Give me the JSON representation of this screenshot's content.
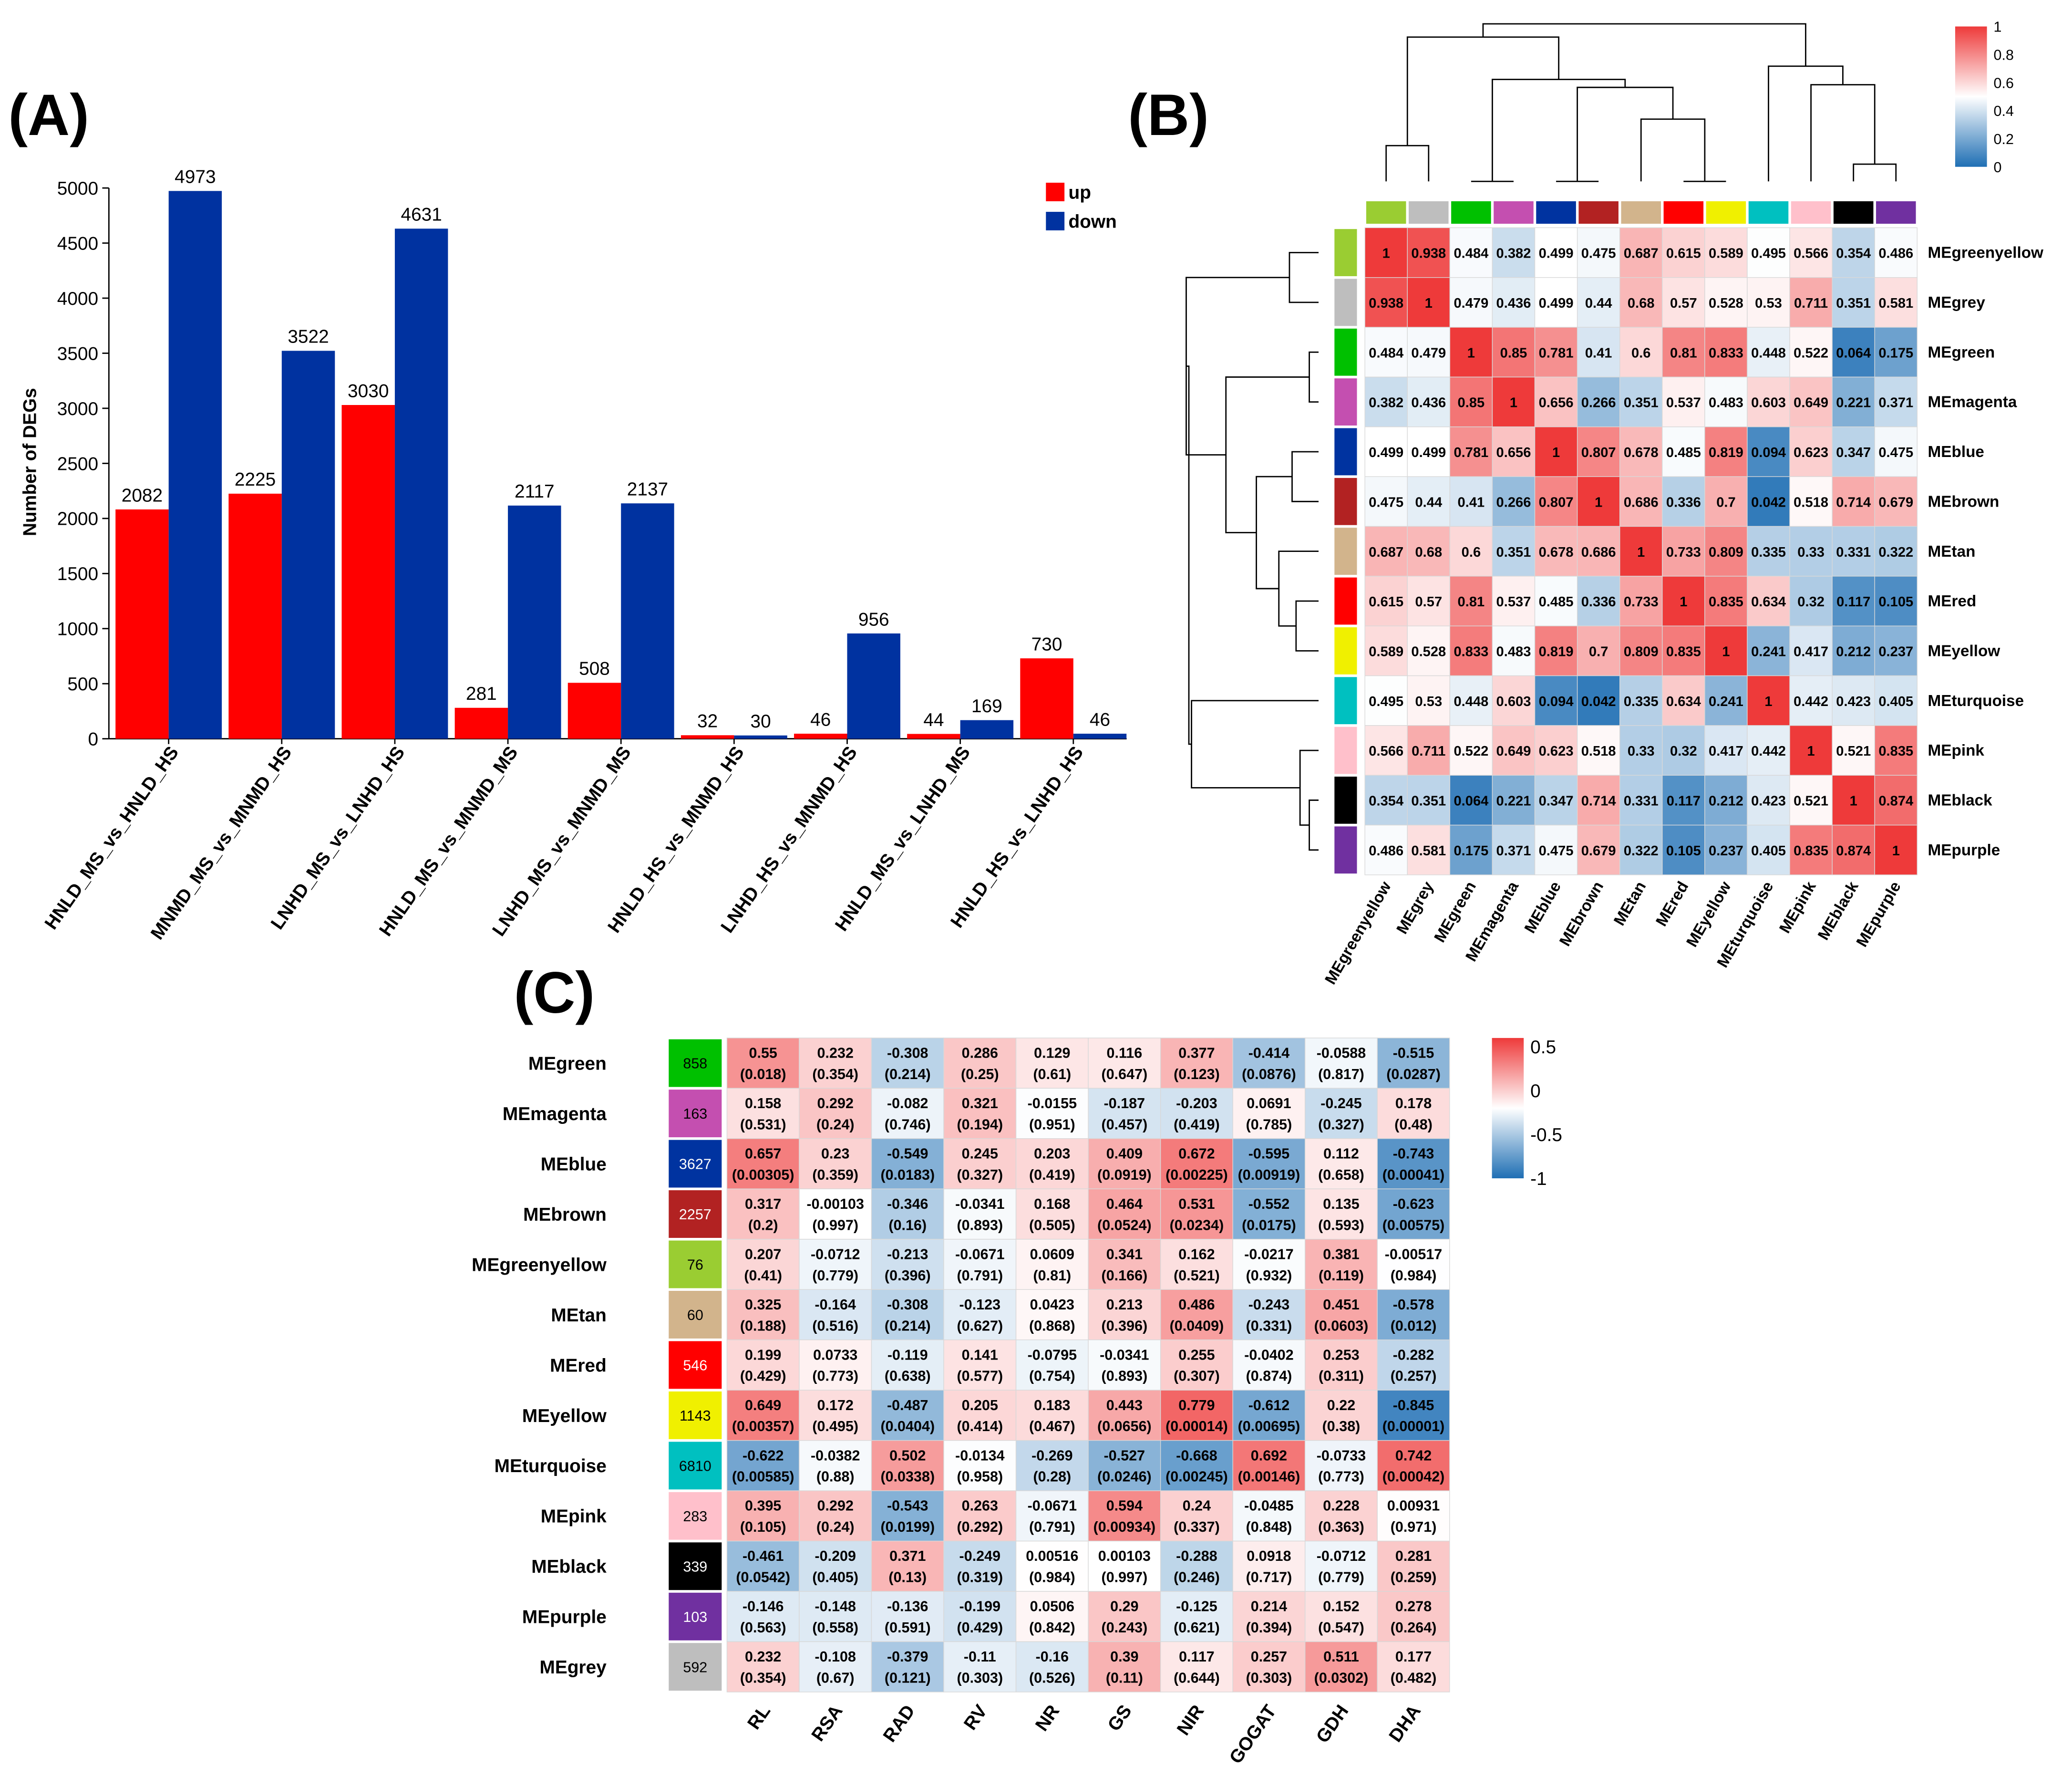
{
  "panels": {
    "a": "(A)",
    "b": "(B)",
    "c": "(C)"
  },
  "chart_data": [
    {
      "type": "bar",
      "panel": "(A)",
      "title": "",
      "xlabel": "",
      "ylabel": "Number of DEGs",
      "ylim": [
        0,
        5000
      ],
      "yticks": [
        "0",
        "500",
        "1000",
        "1500",
        "2000",
        "2500",
        "3000",
        "3500",
        "4000",
        "4500",
        "5000"
      ],
      "legend_position": "top-right",
      "categories": [
        "HNLD_MS_vs_HNLD_HS",
        "MNMD_MS_vs_MNMD_HS",
        "LNHD_MS_vs_LNHD_HS",
        "HNLD_MS_vs_MNMD_MS",
        "LNHD_MS_vs_MNMD_MS",
        "HNLD_HS_vs_MNMD_HS",
        "LNHD_HS_vs_MNMD_HS",
        "HNLD_MS_vs_LNHD_MS",
        "HNLD_HS_vs_LNHD_HS"
      ],
      "series": [
        {
          "name": "up",
          "color": "#ff0000",
          "values": [
            2082,
            2225,
            3030,
            281,
            508,
            32,
            46,
            44,
            730
          ]
        },
        {
          "name": "down",
          "color": "#0032a0",
          "values": [
            4973,
            3522,
            4631,
            2117,
            2137,
            30,
            956,
            169,
            46
          ]
        }
      ]
    },
    {
      "type": "heatmap",
      "panel": "(B)",
      "modules": [
        "MEgreenyellow",
        "MEgrey",
        "MEgreen",
        "MEmagenta",
        "MEblue",
        "MEbrown",
        "MEtan",
        "MEred",
        "MEyellow",
        "MEturquoise",
        "MEpink",
        "MEblack",
        "MEpurple"
      ],
      "module_colors": [
        "#9acd32",
        "#bebebe",
        "#00c000",
        "#c44fb0",
        "#0033a0",
        "#b22222",
        "#d2b48c",
        "#ff0000",
        "#f0f000",
        "#00c0c0",
        "#ffc0cb",
        "#000000",
        "#7030a0"
      ],
      "color_scale": {
        "min": 0,
        "max": 1,
        "low": "#1f6fb4",
        "mid": "#ffffff",
        "high": "#ee3a3a"
      },
      "colorbar_ticks": [
        "1",
        "0.8",
        "0.6",
        "0.4",
        "0.2",
        "0"
      ],
      "values": [
        [
          "1",
          "0.938",
          "0.484",
          "0.382",
          "0.499",
          "0.475",
          "0.687",
          "0.615",
          "0.589",
          "0.495",
          "0.566",
          "0.354",
          "0.486"
        ],
        [
          "0.938",
          "1",
          "0.479",
          "0.436",
          "0.499",
          "0.44",
          "0.68",
          "0.57",
          "0.528",
          "0.53",
          "0.711",
          "0.351",
          "0.581"
        ],
        [
          "0.484",
          "0.479",
          "1",
          "0.85",
          "0.781",
          "0.41",
          "0.6",
          "0.81",
          "0.833",
          "0.448",
          "0.522",
          "0.064",
          "0.175"
        ],
        [
          "0.382",
          "0.436",
          "0.85",
          "1",
          "0.656",
          "0.266",
          "0.351",
          "0.537",
          "0.483",
          "0.603",
          "0.649",
          "0.221",
          "0.371"
        ],
        [
          "0.499",
          "0.499",
          "0.781",
          "0.656",
          "1",
          "0.807",
          "0.678",
          "0.485",
          "0.819",
          "0.094",
          "0.623",
          "0.347",
          "0.475"
        ],
        [
          "0.475",
          "0.44",
          "0.41",
          "0.266",
          "0.807",
          "1",
          "0.686",
          "0.336",
          "0.7",
          "0.042",
          "0.518",
          "0.714",
          "0.679"
        ],
        [
          "0.687",
          "0.68",
          "0.6",
          "0.351",
          "0.678",
          "0.686",
          "1",
          "0.733",
          "0.809",
          "0.335",
          "0.33",
          "0.331",
          "0.322"
        ],
        [
          "0.615",
          "0.57",
          "0.81",
          "0.537",
          "0.485",
          "0.336",
          "0.733",
          "1",
          "0.835",
          "0.634",
          "0.32",
          "0.117",
          "0.105"
        ],
        [
          "0.589",
          "0.528",
          "0.833",
          "0.483",
          "0.819",
          "0.7",
          "0.809",
          "0.835",
          "1",
          "0.241",
          "0.417",
          "0.212",
          "0.237"
        ],
        [
          "0.495",
          "0.53",
          "0.448",
          "0.603",
          "0.094",
          "0.042",
          "0.335",
          "0.634",
          "0.241",
          "1",
          "0.442",
          "0.423",
          "0.405"
        ],
        [
          "0.566",
          "0.711",
          "0.522",
          "0.649",
          "0.623",
          "0.518",
          "0.33",
          "0.32",
          "0.417",
          "0.442",
          "1",
          "0.521",
          "0.835"
        ],
        [
          "0.354",
          "0.351",
          "0.064",
          "0.221",
          "0.347",
          "0.714",
          "0.331",
          "0.117",
          "0.212",
          "0.423",
          "0.521",
          "1",
          "0.874"
        ],
        [
          "0.486",
          "0.581",
          "0.175",
          "0.371",
          "0.475",
          "0.679",
          "0.322",
          "0.105",
          "0.237",
          "0.405",
          "0.835",
          "0.874",
          "1"
        ]
      ]
    },
    {
      "type": "heatmap",
      "panel": "(C)",
      "rows": [
        "MEgreen",
        "MEmagenta",
        "MEblue",
        "MEbrown",
        "MEgreenyellow",
        "MEtan",
        "MEred",
        "MEyellow",
        "MEturquoise",
        "MEpink",
        "MEblack",
        "MEpurple",
        "MEgrey"
      ],
      "row_colors": [
        "#00c000",
        "#c44fb0",
        "#0033a0",
        "#b22222",
        "#9acd32",
        "#d2b48c",
        "#ff0000",
        "#f0f000",
        "#00c0c0",
        "#ffc0cb",
        "#000000",
        "#7030a0",
        "#bebebe"
      ],
      "row_counts": [
        "858",
        "163",
        "3627",
        "2257",
        "76",
        "60",
        "546",
        "1143",
        "6810",
        "283",
        "339",
        "103",
        "592"
      ],
      "columns": [
        "RL",
        "RSA",
        "RAD",
        "RV",
        "NR",
        "GS",
        "NIR",
        "GOGAT",
        "GDH",
        "DHA"
      ],
      "color_scale": {
        "min": -1,
        "max": 1,
        "low": "#1f6fb4",
        "mid": "#ffffff",
        "high": "#ee3a3a"
      },
      "colorbar_ticks": [
        "0.5",
        "0",
        "-0.5",
        "-1"
      ],
      "r": [
        [
          "0.55",
          "0.232",
          "-0.308",
          "0.286",
          "0.129",
          "0.116",
          "0.377",
          "-0.414",
          "-0.0588",
          "-0.515"
        ],
        [
          "0.158",
          "0.292",
          "-0.082",
          "0.321",
          "-0.0155",
          "-0.187",
          "-0.203",
          "0.0691",
          "-0.245",
          "0.178"
        ],
        [
          "0.657",
          "0.23",
          "-0.549",
          "0.245",
          "0.203",
          "0.409",
          "0.672",
          "-0.595",
          "0.112",
          "-0.743"
        ],
        [
          "0.317",
          "-0.00103",
          "-0.346",
          "-0.0341",
          "0.168",
          "0.464",
          "0.531",
          "-0.552",
          "0.135",
          "-0.623"
        ],
        [
          "0.207",
          "-0.0712",
          "-0.213",
          "-0.0671",
          "0.0609",
          "0.341",
          "0.162",
          "-0.0217",
          "0.381",
          "-0.00517"
        ],
        [
          "0.325",
          "-0.164",
          "-0.308",
          "-0.123",
          "0.0423",
          "0.213",
          "0.486",
          "-0.243",
          "0.451",
          "-0.578"
        ],
        [
          "0.199",
          "0.0733",
          "-0.119",
          "0.141",
          "-0.0795",
          "-0.0341",
          "0.255",
          "-0.0402",
          "0.253",
          "-0.282"
        ],
        [
          "0.649",
          "0.172",
          "-0.487",
          "0.205",
          "0.183",
          "0.443",
          "0.779",
          "-0.612",
          "0.22",
          "-0.845"
        ],
        [
          "-0.622",
          "-0.0382",
          "0.502",
          "-0.0134",
          "-0.269",
          "-0.527",
          "-0.668",
          "0.692",
          "-0.0733",
          "0.742"
        ],
        [
          "0.395",
          "0.292",
          "-0.543",
          "0.263",
          "-0.0671",
          "0.594",
          "0.24",
          "-0.0485",
          "0.228",
          "0.00931"
        ],
        [
          "-0.461",
          "-0.209",
          "0.371",
          "-0.249",
          "0.00516",
          "0.00103",
          "-0.288",
          "0.0918",
          "-0.0712",
          "0.281"
        ],
        [
          "-0.146",
          "-0.148",
          "-0.136",
          "-0.199",
          "0.0506",
          "0.29",
          "-0.125",
          "0.214",
          "0.152",
          "0.278"
        ],
        [
          "0.232",
          "-0.108",
          "-0.379",
          "-0.11",
          "-0.16",
          "0.39",
          "0.117",
          "0.257",
          "0.511",
          "0.177"
        ]
      ],
      "p": [
        [
          "(0.018)",
          "(0.354)",
          "(0.214)",
          "(0.25)",
          "(0.61)",
          "(0.647)",
          "(0.123)",
          "(0.0876)",
          "(0.817)",
          "(0.0287)"
        ],
        [
          "(0.531)",
          "(0.24)",
          "(0.746)",
          "(0.194)",
          "(0.951)",
          "(0.457)",
          "(0.419)",
          "(0.785)",
          "(0.327)",
          "(0.48)"
        ],
        [
          "(0.00305)",
          "(0.359)",
          "(0.0183)",
          "(0.327)",
          "(0.419)",
          "(0.0919)",
          "(0.00225)",
          "(0.00919)",
          "(0.658)",
          "(0.00041)"
        ],
        [
          "(0.2)",
          "(0.997)",
          "(0.16)",
          "(0.893)",
          "(0.505)",
          "(0.0524)",
          "(0.0234)",
          "(0.0175)",
          "(0.593)",
          "(0.00575)"
        ],
        [
          "(0.41)",
          "(0.779)",
          "(0.396)",
          "(0.791)",
          "(0.81)",
          "(0.166)",
          "(0.521)",
          "(0.932)",
          "(0.119)",
          "(0.984)"
        ],
        [
          "(0.188)",
          "(0.516)",
          "(0.214)",
          "(0.627)",
          "(0.868)",
          "(0.396)",
          "(0.0409)",
          "(0.331)",
          "(0.0603)",
          "(0.012)"
        ],
        [
          "(0.429)",
          "(0.773)",
          "(0.638)",
          "(0.577)",
          "(0.754)",
          "(0.893)",
          "(0.307)",
          "(0.874)",
          "(0.311)",
          "(0.257)"
        ],
        [
          "(0.00357)",
          "(0.495)",
          "(0.0404)",
          "(0.414)",
          "(0.467)",
          "(0.0656)",
          "(0.00014)",
          "(0.00695)",
          "(0.38)",
          "(0.00001)"
        ],
        [
          "(0.00585)",
          "(0.88)",
          "(0.0338)",
          "(0.958)",
          "(0.28)",
          "(0.0246)",
          "(0.00245)",
          "(0.00146)",
          "(0.773)",
          "(0.00042)"
        ],
        [
          "(0.105)",
          "(0.24)",
          "(0.0199)",
          "(0.292)",
          "(0.791)",
          "(0.00934)",
          "(0.337)",
          "(0.848)",
          "(0.363)",
          "(0.971)"
        ],
        [
          "(0.0542)",
          "(0.405)",
          "(0.13)",
          "(0.319)",
          "(0.984)",
          "(0.997)",
          "(0.246)",
          "(0.717)",
          "(0.779)",
          "(0.259)"
        ],
        [
          "(0.563)",
          "(0.558)",
          "(0.591)",
          "(0.429)",
          "(0.842)",
          "(0.243)",
          "(0.621)",
          "(0.394)",
          "(0.547)",
          "(0.264)"
        ],
        [
          "(0.354)",
          "(0.67)",
          "(0.121)",
          "(0.303)",
          "(0.526)",
          "(0.11)",
          "(0.644)",
          "(0.303)",
          "(0.0302)",
          "(0.482)"
        ]
      ]
    }
  ]
}
